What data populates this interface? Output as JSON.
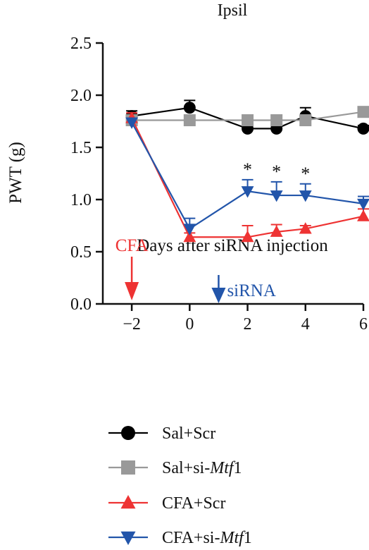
{
  "chart_data": {
    "type": "line",
    "title": "Ipsil",
    "xlabel": "Days after siRNA injection",
    "ylabel": "PWT (g)",
    "xlim": [
      -3,
      6
    ],
    "ylim": [
      0,
      2.5
    ],
    "x_ticks": [
      -2,
      0,
      2,
      4,
      6
    ],
    "x_tick_labels": [
      "−2",
      "0",
      "2",
      "4",
      "6"
    ],
    "y_ticks": [
      0.0,
      0.5,
      1.0,
      1.5,
      2.0,
      2.5
    ],
    "y_tick_labels": [
      "0.0",
      "0.5",
      "1.0",
      "1.5",
      "2.0",
      "2.5"
    ],
    "grid": false,
    "legend_position": "bottom",
    "series": [
      {
        "name": "Sal+Scr",
        "color": "#000000",
        "marker": "circle",
        "x": [
          -2,
          0,
          2,
          3,
          4,
          6
        ],
        "y": [
          1.8,
          1.88,
          1.68,
          1.68,
          1.8,
          1.68
        ],
        "err": [
          0.05,
          0.07,
          0.03,
          0.03,
          0.08,
          0.03
        ]
      },
      {
        "name": "Sal+si-Mtf1",
        "name_parts": [
          "Sal+si-",
          "Mtf",
          "1"
        ],
        "color": "#999999",
        "marker": "square",
        "x": [
          -2,
          0,
          2,
          3,
          4,
          6
        ],
        "y": [
          1.76,
          1.76,
          1.76,
          1.76,
          1.76,
          1.84
        ],
        "err": [
          0.04,
          0.03,
          0.04,
          0.04,
          0.04,
          0.04
        ]
      },
      {
        "name": "CFA+Scr",
        "color": "#ee3333",
        "marker": "triangle-up",
        "x": [
          -2,
          0,
          2,
          3,
          4,
          6
        ],
        "y": [
          1.78,
          0.64,
          0.64,
          0.69,
          0.72,
          0.84
        ],
        "err": [
          0.05,
          0.04,
          0.11,
          0.07,
          0.03,
          0.07
        ]
      },
      {
        "name": "CFA+si-Mtf1",
        "name_parts": [
          "CFA+si-",
          "Mtf",
          "1"
        ],
        "color": "#2255aa",
        "marker": "triangle-down",
        "x": [
          -2,
          0,
          2,
          3,
          4,
          6
        ],
        "y": [
          1.74,
          0.72,
          1.08,
          1.04,
          1.04,
          0.96
        ],
        "err": [
          0.04,
          0.1,
          0.11,
          0.13,
          0.11,
          0.07
        ]
      }
    ],
    "significance": [
      {
        "x": 2,
        "label": "*"
      },
      {
        "x": 3,
        "label": "*"
      },
      {
        "x": 4,
        "label": "*"
      }
    ],
    "annotations": [
      {
        "label": "CFA",
        "x": -2,
        "color": "#ee3333",
        "position": "above-arrow"
      },
      {
        "label": "siRNA",
        "x": 1,
        "color": "#2255aa",
        "position": "right-of-arrow"
      }
    ]
  }
}
